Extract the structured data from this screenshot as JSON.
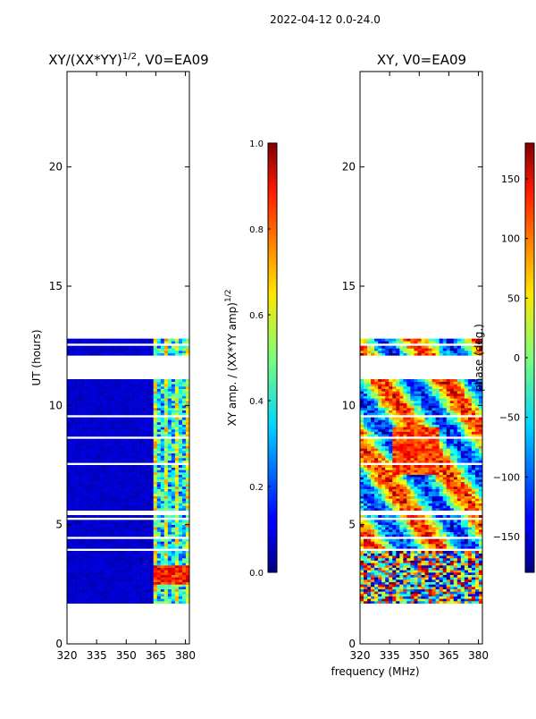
{
  "chart_data": {
    "type": "heatmap",
    "suptitle": "2022-04-12 0.0-24.0",
    "xlabel_shared": "frequency (MHz)",
    "panels": [
      {
        "id": "amp",
        "title_main": "XY/(XX*YY)",
        "title_sup": "1/2",
        "title_tail": ", V0=EA09",
        "ylabel": "UT (hours)",
        "xlim": [
          320,
          382
        ],
        "ylim": [
          0,
          24
        ],
        "xticks": [
          320,
          335,
          350,
          365,
          380
        ],
        "yticks": [
          0,
          5,
          10,
          15,
          20
        ],
        "data_ut_range": [
          1.7,
          12.7
        ],
        "colorbar": {
          "label_main": "XY amp. / (XX*YY amp)",
          "label_sup": "1/2",
          "range": [
            0.0,
            1.0
          ],
          "ticks": [
            "0.0",
            "0.2",
            "0.4",
            "0.6",
            "0.8",
            "1.0"
          ],
          "tick_values": [
            0.0,
            0.2,
            0.4,
            0.6,
            0.8,
            1.0
          ]
        }
      },
      {
        "id": "phase",
        "title": "XY, V0=EA09",
        "xlim": [
          320,
          382
        ],
        "ylim": [
          0,
          24
        ],
        "xticks": [
          320,
          335,
          350,
          365,
          380
        ],
        "yticks": [
          0,
          5,
          10,
          15,
          20
        ],
        "data_ut_range": [
          1.7,
          12.7
        ],
        "colorbar": {
          "label": "phase (deg.)",
          "range": [
            -180,
            180
          ],
          "ticks": [
            "150",
            "100",
            "50",
            "0",
            "−50",
            "−100",
            "−150"
          ],
          "tick_values": [
            150,
            100,
            50,
            0,
            -50,
            -100,
            -150
          ]
        }
      }
    ],
    "gap_bands_ut": [
      [
        11.1,
        12.1
      ],
      [
        12.5,
        12.55
      ],
      [
        12.35,
        12.38
      ],
      [
        9.5,
        9.55
      ],
      [
        9.2,
        9.24
      ],
      [
        8.62,
        8.68
      ],
      [
        8.45,
        8.5
      ],
      [
        7.5,
        7.55
      ],
      [
        6.3,
        6.34
      ],
      [
        5.95,
        6.0
      ],
      [
        5.4,
        5.6
      ],
      [
        5.22,
        5.28
      ],
      [
        4.9,
        4.94
      ],
      [
        4.4,
        4.45
      ],
      [
        3.95,
        4.0
      ],
      [
        3.5,
        3.55
      ],
      [
        3.3,
        3.34
      ],
      [
        2.5,
        2.55
      ],
      [
        2.1,
        2.14
      ],
      [
        1.9,
        1.94
      ]
    ]
  }
}
